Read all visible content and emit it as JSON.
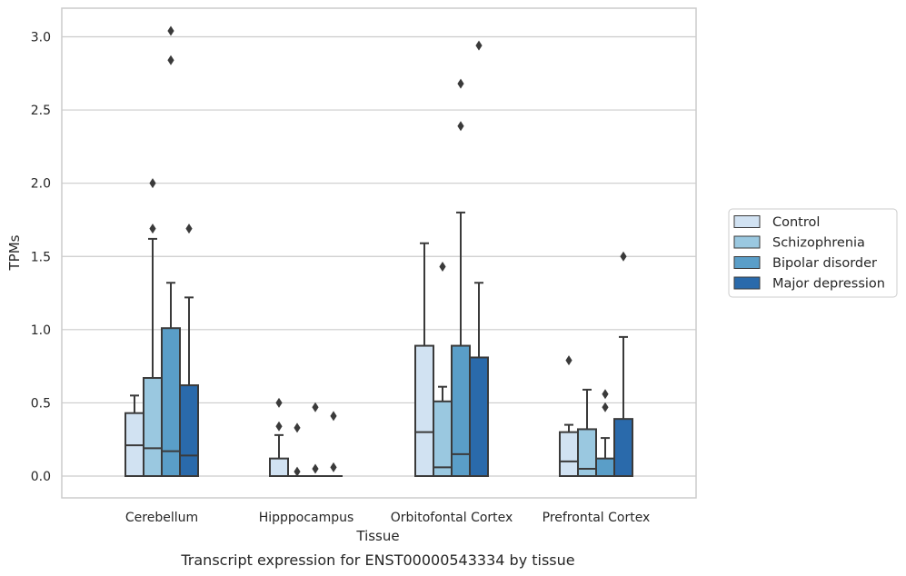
{
  "caption": "Transcript expression for ENST00000543334 by tissue",
  "chart_data": {
    "type": "box",
    "xlabel": "Tissue",
    "ylabel": "TPMs",
    "ylim": [
      -0.15,
      3.2
    ],
    "yticks": [
      0.0,
      0.5,
      1.0,
      1.5,
      2.0,
      2.5,
      3.0
    ],
    "grid": true,
    "legend_position": "right",
    "categories": [
      "Cerebellum",
      "Hipppocampus",
      "Orbitofontal Cortex",
      "Prefrontal Cortex"
    ],
    "series": [
      {
        "name": "Control",
        "color": "#d1e2f2",
        "boxes": [
          {
            "q1": 0.0,
            "median": 0.21,
            "q3": 0.43,
            "whisker_low": 0.0,
            "whisker_high": 0.55,
            "outliers": []
          },
          {
            "q1": 0.0,
            "median": 0.0,
            "q3": 0.12,
            "whisker_low": 0.0,
            "whisker_high": 0.28,
            "outliers": [
              0.34,
              0.5
            ]
          },
          {
            "q1": 0.0,
            "median": 0.3,
            "q3": 0.89,
            "whisker_low": 0.0,
            "whisker_high": 1.59,
            "outliers": []
          },
          {
            "q1": 0.0,
            "median": 0.1,
            "q3": 0.3,
            "whisker_low": 0.0,
            "whisker_high": 0.35,
            "outliers": [
              0.79
            ]
          }
        ]
      },
      {
        "name": "Schizophrenia",
        "color": "#9ac8e0",
        "boxes": [
          {
            "q1": 0.0,
            "median": 0.19,
            "q3": 0.67,
            "whisker_low": 0.0,
            "whisker_high": 1.62,
            "outliers": [
              1.69,
              2.0
            ]
          },
          {
            "q1": 0.0,
            "median": 0.0,
            "q3": 0.0,
            "whisker_low": 0.0,
            "whisker_high": 0.0,
            "outliers": [
              0.03,
              0.33
            ]
          },
          {
            "q1": 0.0,
            "median": 0.06,
            "q3": 0.51,
            "whisker_low": 0.0,
            "whisker_high": 0.61,
            "outliers": [
              1.43
            ]
          },
          {
            "q1": 0.0,
            "median": 0.05,
            "q3": 0.32,
            "whisker_low": 0.0,
            "whisker_high": 0.59,
            "outliers": []
          }
        ]
      },
      {
        "name": "Bipolar disorder",
        "color": "#5a9ec8",
        "boxes": [
          {
            "q1": 0.0,
            "median": 0.17,
            "q3": 1.01,
            "whisker_low": 0.0,
            "whisker_high": 1.32,
            "outliers": [
              2.84,
              3.04
            ]
          },
          {
            "q1": 0.0,
            "median": 0.0,
            "q3": 0.0,
            "whisker_low": 0.0,
            "whisker_high": 0.0,
            "outliers": [
              0.05,
              0.47
            ]
          },
          {
            "q1": 0.0,
            "median": 0.15,
            "q3": 0.89,
            "whisker_low": 0.0,
            "whisker_high": 1.8,
            "outliers": [
              2.39,
              2.68
            ]
          },
          {
            "q1": 0.0,
            "median": 0.0,
            "q3": 0.12,
            "whisker_low": 0.0,
            "whisker_high": 0.26,
            "outliers": [
              0.47,
              0.56
            ]
          }
        ]
      },
      {
        "name": "Major depression",
        "color": "#2a6aab",
        "boxes": [
          {
            "q1": 0.0,
            "median": 0.14,
            "q3": 0.62,
            "whisker_low": 0.0,
            "whisker_high": 1.22,
            "outliers": [
              1.69
            ]
          },
          {
            "q1": 0.0,
            "median": 0.0,
            "q3": 0.0,
            "whisker_low": 0.0,
            "whisker_high": 0.0,
            "outliers": [
              0.06,
              0.41
            ]
          },
          {
            "q1": 0.0,
            "median": 0.0,
            "q3": 0.81,
            "whisker_low": 0.0,
            "whisker_high": 1.32,
            "outliers": [
              2.94
            ]
          },
          {
            "q1": 0.0,
            "median": 0.0,
            "q3": 0.39,
            "whisker_low": 0.0,
            "whisker_high": 0.95,
            "outliers": [
              1.5
            ]
          }
        ]
      }
    ]
  }
}
